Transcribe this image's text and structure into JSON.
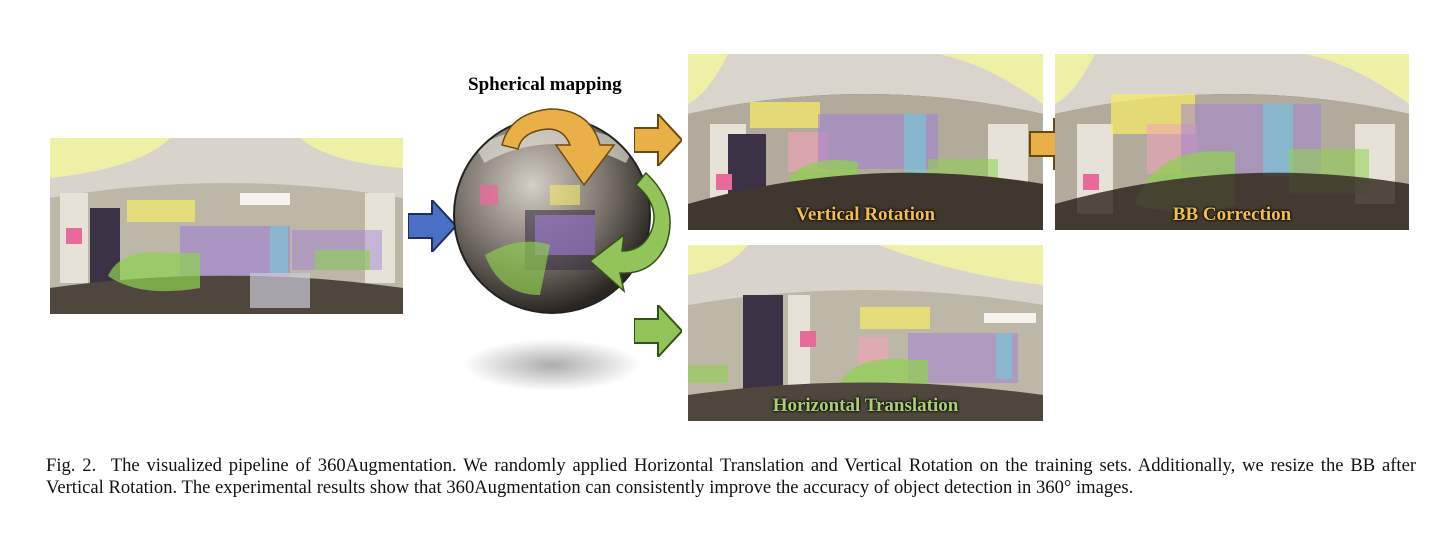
{
  "figure": {
    "spherical_mapping_label": "Spherical mapping",
    "panels": {
      "vertical_rotation": "Vertical Rotation",
      "bb_correction": "BB Correction",
      "horizontal_translation": "Horizontal Translation"
    },
    "colors": {
      "arrow_blue": "#4a6fc4",
      "arrow_orange": "#e8b046",
      "arrow_green": "#92c45a",
      "label_orange": "#f0bf4c",
      "label_green": "#a8d070"
    },
    "box_colors": [
      "#8fd14f",
      "#f3ea6a",
      "#9f7fd6",
      "#77c7d8",
      "#f2a3b8",
      "#f0b070"
    ]
  },
  "caption": {
    "label": "Fig. 2.",
    "text": "The visualized pipeline of 360Augmentation. We randomly applied Horizontal Translation and Vertical Rotation on the training sets. Additionally, we resize the BB after Vertical Rotation. The experimental results show that 360Augmentation can consistently improve the accuracy of object detection in 360° images."
  }
}
